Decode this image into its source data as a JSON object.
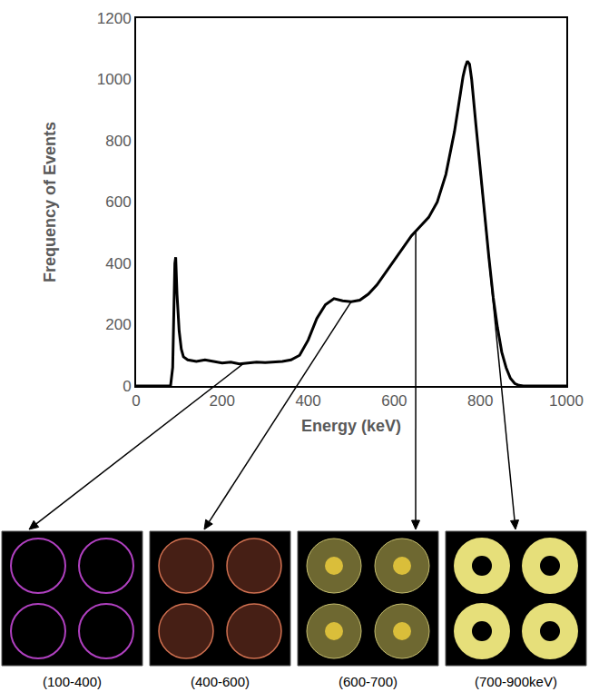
{
  "chart_data": {
    "type": "line",
    "x_label": "Energy (keV)",
    "y_label": "Frequency of Events",
    "color": "#000000",
    "x": [
      0,
      60,
      80,
      85,
      88,
      90,
      92,
      95,
      100,
      105,
      110,
      120,
      140,
      160,
      180,
      200,
      220,
      240,
      260,
      280,
      300,
      320,
      340,
      360,
      380,
      400,
      420,
      440,
      460,
      480,
      500,
      520,
      540,
      560,
      580,
      600,
      620,
      640,
      660,
      680,
      700,
      720,
      740,
      750,
      760,
      765,
      770,
      775,
      780,
      790,
      800,
      810,
      820,
      830,
      840,
      850,
      860,
      870,
      880,
      890,
      900,
      1000
    ],
    "values": [
      0,
      0,
      0,
      60,
      250,
      400,
      420,
      300,
      180,
      120,
      95,
      85,
      80,
      85,
      80,
      75,
      78,
      72,
      75,
      78,
      76,
      78,
      80,
      85,
      100,
      150,
      220,
      265,
      285,
      278,
      275,
      280,
      300,
      330,
      370,
      410,
      450,
      490,
      520,
      550,
      600,
      690,
      830,
      920,
      1010,
      1040,
      1060,
      1050,
      1000,
      850,
      700,
      560,
      420,
      290,
      190,
      110,
      60,
      25,
      8,
      2,
      0,
      0
    ],
    "xlim": [
      0,
      1000
    ],
    "xticks": [
      0,
      200,
      400,
      600,
      800,
      1000
    ],
    "ylim": [
      0,
      1200
    ],
    "yticks": [
      0,
      200,
      400,
      600,
      800,
      1000,
      1200
    ],
    "grid": false,
    "panels": [
      {
        "label": "(100-400)",
        "range": [
          100,
          400
        ]
      },
      {
        "label": "(400-600)",
        "range": [
          400,
          600
        ]
      },
      {
        "label": "(600-700)",
        "range": [
          600,
          700
        ]
      },
      {
        "label": "(700-900keV)",
        "range": [
          700,
          900
        ]
      }
    ]
  }
}
